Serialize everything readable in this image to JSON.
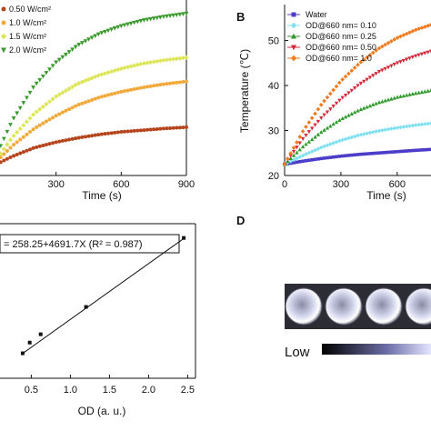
{
  "panels": {
    "a": {
      "label": "",
      "xlabel": "Time (s)",
      "ylabel": "",
      "xticks": [
        "300",
        "600",
        "900"
      ],
      "yticks": [],
      "legend": [
        "0.50 W/cm²",
        "1.0 W/cm²",
        "1.5 W/cm²",
        "2.0 W/cm²"
      ]
    },
    "b": {
      "label": "B",
      "xlabel": "Time (s)",
      "ylabel": "Temperature (℃)",
      "xticks": [
        "0",
        "300",
        "600"
      ],
      "yticks": [
        "20",
        "30",
        "40",
        "50"
      ],
      "legend": [
        "Water",
        "OD@660 nm= 0.10",
        "OD@660 nm= 0.25",
        "OD@660 nm= 0.50",
        "OD@660 nm= 1.0"
      ]
    },
    "c": {
      "label": "",
      "xlabel": "OD (a. u.)",
      "ylabel": "",
      "xticks": [
        "0.5",
        "1.0",
        "1.5",
        "2.0",
        "2.5"
      ],
      "yticks": [],
      "equation": "= 258.25+4691.7X  (R² = 0.987)"
    },
    "d": {
      "label": "D",
      "scale_low": "Low"
    }
  },
  "chart_data": [
    {
      "type": "line",
      "panel": "a",
      "xlabel": "Time (s)",
      "xlim": [
        0,
        900
      ],
      "ylim": [
        20,
        60
      ],
      "series": [
        {
          "name": "0.50 W/cm²",
          "color": "#b5441c",
          "marker": "circle",
          "x": [
            0,
            100,
            200,
            300,
            400,
            500,
            600,
            700,
            800,
            900
          ],
          "y": [
            22,
            24.5,
            26.5,
            27.8,
            28.8,
            29.6,
            30.2,
            30.6,
            31,
            31.3
          ]
        },
        {
          "name": "1.0 W/cm²",
          "color": "#f2a93b",
          "marker": "circle",
          "x": [
            0,
            100,
            200,
            300,
            400,
            500,
            600,
            700,
            800,
            900
          ],
          "y": [
            22,
            27,
            31,
            34,
            36.5,
            38.3,
            39.6,
            40.6,
            41.4,
            42
          ]
        },
        {
          "name": "1.5 W/cm²",
          "color": "#dde65a",
          "marker": "diamond",
          "x": [
            0,
            100,
            200,
            300,
            400,
            500,
            600,
            700,
            800,
            900
          ],
          "y": [
            22,
            29,
            34.5,
            38.5,
            41.5,
            43.5,
            45,
            46.2,
            47,
            47.6
          ]
        },
        {
          "name": "2.0 W/cm²",
          "color": "#3a9a2c",
          "marker": "triangle-down",
          "x": [
            0,
            100,
            200,
            300,
            400,
            500,
            600,
            700,
            800,
            900
          ],
          "y": [
            22,
            33,
            41,
            46.5,
            50.5,
            53.2,
            55,
            56.3,
            57.2,
            57.9
          ]
        }
      ]
    },
    {
      "type": "line",
      "panel": "b",
      "xlabel": "Time (s)",
      "ylabel": "Temperature (℃)",
      "xlim": [
        0,
        780
      ],
      "ylim": [
        20,
        58
      ],
      "series": [
        {
          "name": "Water",
          "color": "#4b3cc9",
          "marker": "square",
          "x": [
            0,
            100,
            200,
            300,
            400,
            500,
            600,
            700,
            780
          ],
          "y": [
            22.5,
            23.2,
            23.8,
            24.3,
            24.7,
            25,
            25.3,
            25.6,
            25.8
          ]
        },
        {
          "name": "OD@660 nm= 0.10",
          "color": "#7fe0f0",
          "marker": "diamond",
          "x": [
            0,
            100,
            200,
            300,
            400,
            500,
            600,
            700,
            780
          ],
          "y": [
            22.5,
            24.5,
            26.3,
            27.8,
            29,
            29.9,
            30.6,
            31.2,
            31.6
          ]
        },
        {
          "name": "OD@660 nm= 0.25",
          "color": "#2e9a2a",
          "marker": "triangle-up",
          "x": [
            0,
            100,
            200,
            300,
            400,
            500,
            600,
            700,
            780
          ],
          "y": [
            22.5,
            26.5,
            29.8,
            32.5,
            34.6,
            36.2,
            37.4,
            38.3,
            38.9
          ]
        },
        {
          "name": "OD@660 nm= 0.50",
          "color": "#d42a3a",
          "marker": "triangle-down",
          "x": [
            0,
            100,
            200,
            300,
            400,
            500,
            600,
            700,
            780
          ],
          "y": [
            22.5,
            28.3,
            33,
            37,
            40.3,
            43,
            45,
            46.6,
            47.6
          ]
        },
        {
          "name": "OD@660 nm= 1.0",
          "color": "#f07a1e",
          "marker": "diamond",
          "x": [
            0,
            100,
            200,
            300,
            400,
            500,
            600,
            700,
            780
          ],
          "y": [
            22.5,
            30,
            36,
            41,
            45,
            48.2,
            50.6,
            52.4,
            53.5
          ]
        }
      ]
    },
    {
      "type": "scatter",
      "panel": "c",
      "xlabel": "OD (a. u.)",
      "xlim": [
        0.1,
        2.6
      ],
      "ylim": [
        0,
        13000
      ],
      "points": {
        "x": [
          0.39,
          0.48,
          0.62,
          1.2,
          2.45
        ],
        "y": [
          2100,
          3000,
          3700,
          6000,
          11800
        ]
      },
      "fit": {
        "intercept": 258.25,
        "slope": 4691.7,
        "x_range": [
          0.39,
          2.45
        ]
      }
    },
    {
      "type": "heatmap",
      "panel": "d",
      "colorscale": [
        "#000000",
        "#ffffff"
      ],
      "wells": 4
    }
  ]
}
